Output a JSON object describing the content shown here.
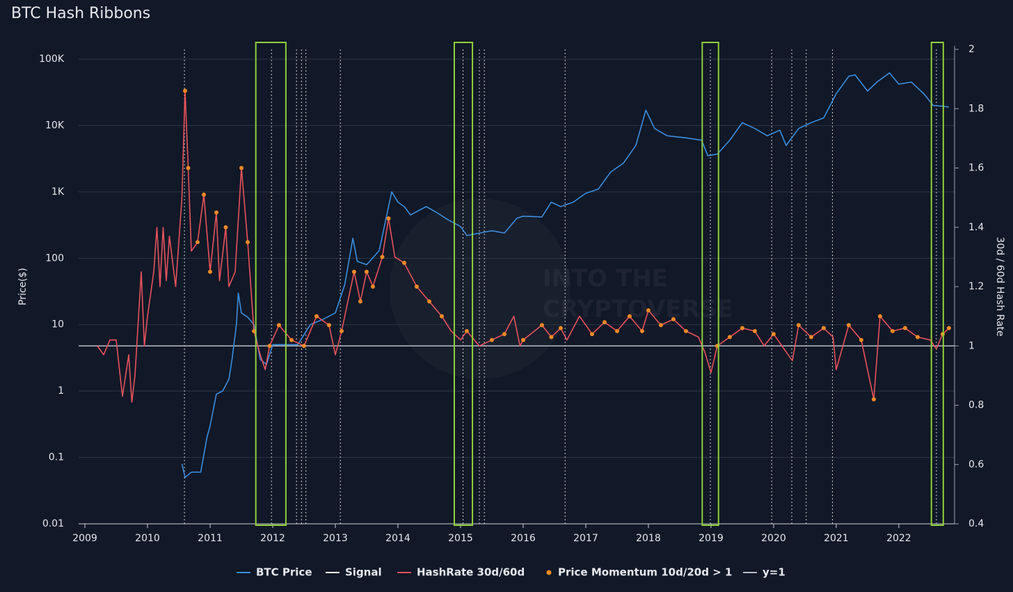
{
  "chart_data": {
    "type": "line",
    "title": "BTC Hash Ribbons",
    "ylabel": "Price($)",
    "y2label": "30d / 60d Hash Rate",
    "watermark": [
      "INTO THE",
      "CRYPTOVERSE"
    ],
    "xlim": [
      2008.9,
      2022.89
    ],
    "xticks": [
      2009,
      2010,
      2011,
      2012,
      2013,
      2014,
      2015,
      2016,
      2017,
      2018,
      2019,
      2020,
      2021,
      2022
    ],
    "ylim": [
      0.01,
      140000
    ],
    "log_y": true,
    "yticks": [
      0.01,
      0.1,
      1,
      10,
      100,
      {
        "value": 1000,
        "label": "1K"
      },
      {
        "value": 10000,
        "label": "10K"
      },
      {
        "value": 100000,
        "label": "100K"
      }
    ],
    "y2lim": [
      0.4,
      2
    ],
    "y2ticks": [
      0.4,
      0.6,
      0.8,
      1,
      1.2,
      1.4,
      1.6,
      1.8,
      2
    ],
    "grid": true,
    "legend": "bottom",
    "series": [
      {
        "name": "BTC Price",
        "color": "#3b8ee0",
        "x": [
          2010.55,
          2010.6,
          2010.7,
          2010.85,
          2010.95,
          2011.0,
          2011.1,
          2011.2,
          2011.3,
          2011.35,
          2011.42,
          2011.45,
          2011.5,
          2011.6,
          2011.7,
          2011.8,
          2011.9,
          2012.0,
          2012.2,
          2012.4,
          2012.6,
          2012.8,
          2013.0,
          2013.15,
          2013.28,
          2013.35,
          2013.5,
          2013.7,
          2013.9,
          2014.0,
          2014.1,
          2014.2,
          2014.45,
          2014.6,
          2014.8,
          2015.0,
          2015.1,
          2015.3,
          2015.5,
          2015.7,
          2015.9,
          2016.0,
          2016.3,
          2016.45,
          2016.6,
          2016.8,
          2017.0,
          2017.2,
          2017.4,
          2017.6,
          2017.8,
          2017.96,
          2018.1,
          2018.3,
          2018.6,
          2018.85,
          2018.95,
          2019.1,
          2019.3,
          2019.5,
          2019.7,
          2019.9,
          2020.1,
          2020.2,
          2020.4,
          2020.6,
          2020.8,
          2021.0,
          2021.2,
          2021.3,
          2021.5,
          2021.65,
          2021.85,
          2022.0,
          2022.2,
          2022.4,
          2022.55,
          2022.7,
          2022.8
        ],
        "values": [
          0.08,
          0.05,
          0.06,
          0.06,
          0.2,
          0.3,
          0.9,
          1,
          1.5,
          3,
          10,
          30,
          15,
          13,
          10,
          3,
          2.5,
          5,
          5,
          5,
          10,
          12,
          15,
          40,
          200,
          90,
          80,
          130,
          1000,
          700,
          600,
          450,
          600,
          500,
          380,
          300,
          220,
          240,
          260,
          240,
          400,
          430,
          420,
          700,
          600,
          700,
          950,
          1100,
          2000,
          2700,
          5000,
          17000,
          9000,
          7000,
          6500,
          6000,
          3500,
          3700,
          6000,
          11000,
          9000,
          7000,
          8500,
          5000,
          9000,
          11000,
          13000,
          30000,
          55000,
          58000,
          33000,
          45000,
          62000,
          42000,
          45000,
          30000,
          20000,
          19500,
          19000
        ]
      },
      {
        "name": "HashRate 30d/60d",
        "color": "#e8535b",
        "axis": "y2",
        "x": [
          2009.2,
          2009.3,
          2009.4,
          2009.5,
          2009.6,
          2009.7,
          2009.75,
          2009.8,
          2009.9,
          2009.95,
          2010.0,
          2010.1,
          2010.15,
          2010.2,
          2010.25,
          2010.3,
          2010.35,
          2010.45,
          2010.55,
          2010.6,
          2010.65,
          2010.7,
          2010.8,
          2010.9,
          2011.0,
          2011.1,
          2011.15,
          2011.25,
          2011.3,
          2011.4,
          2011.5,
          2011.6,
          2011.7,
          2011.8,
          2011.88,
          2011.95,
          2012.1,
          2012.3,
          2012.5,
          2012.7,
          2012.9,
          2013.0,
          2013.1,
          2013.3,
          2013.4,
          2013.5,
          2013.6,
          2013.75,
          2013.85,
          2013.95,
          2014.1,
          2014.3,
          2014.5,
          2014.7,
          2014.85,
          2015.0,
          2015.1,
          2015.3,
          2015.5,
          2015.7,
          2015.85,
          2015.95,
          2016.0,
          2016.3,
          2016.45,
          2016.6,
          2016.7,
          2016.9,
          2017.1,
          2017.3,
          2017.5,
          2017.7,
          2017.9,
          2018.0,
          2018.2,
          2018.4,
          2018.6,
          2018.8,
          2018.9,
          2019.0,
          2019.1,
          2019.3,
          2019.5,
          2019.7,
          2019.85,
          2020.0,
          2020.3,
          2020.4,
          2020.6,
          2020.8,
          2020.95,
          2021.0,
          2021.2,
          2021.4,
          2021.5,
          2021.6,
          2021.7,
          2021.9,
          2022.1,
          2022.3,
          2022.5,
          2022.6,
          2022.7,
          2022.8
        ],
        "values": [
          1.0,
          0.97,
          1.02,
          1.02,
          0.83,
          0.97,
          0.81,
          0.9,
          1.25,
          1.0,
          1.1,
          1.25,
          1.4,
          1.2,
          1.4,
          1.22,
          1.37,
          1.2,
          1.5,
          1.86,
          1.6,
          1.32,
          1.35,
          1.51,
          1.25,
          1.45,
          1.22,
          1.4,
          1.2,
          1.25,
          1.6,
          1.35,
          1.05,
          0.97,
          0.92,
          1.0,
          1.07,
          1.02,
          1.0,
          1.1,
          1.07,
          0.97,
          1.05,
          1.25,
          1.15,
          1.25,
          1.2,
          1.3,
          1.43,
          1.3,
          1.28,
          1.2,
          1.15,
          1.1,
          1.05,
          1.02,
          1.05,
          1.0,
          1.02,
          1.04,
          1.1,
          1.0,
          1.02,
          1.07,
          1.03,
          1.06,
          1.02,
          1.1,
          1.04,
          1.08,
          1.05,
          1.1,
          1.05,
          1.12,
          1.07,
          1.09,
          1.05,
          1.03,
          0.98,
          0.91,
          1.0,
          1.03,
          1.06,
          1.05,
          1.0,
          1.04,
          0.95,
          1.07,
          1.03,
          1.06,
          1.03,
          0.92,
          1.07,
          1.02,
          0.92,
          0.82,
          1.1,
          1.05,
          1.06,
          1.03,
          1.02,
          0.99,
          1.04,
          1.06
        ]
      },
      {
        "name": "Price Momentum 10d/20d > 1",
        "color": "#f08a24",
        "axis": "y2",
        "marker": "dot",
        "x": [
          2010.6,
          2010.65,
          2010.8,
          2010.9,
          2011.0,
          2011.1,
          2011.25,
          2011.5,
          2011.6,
          2011.7,
          2011.95,
          2012.1,
          2012.3,
          2012.5,
          2012.7,
          2012.9,
          2013.1,
          2013.3,
          2013.4,
          2013.5,
          2013.6,
          2013.75,
          2013.85,
          2014.1,
          2014.3,
          2014.5,
          2014.7,
          2015.1,
          2015.5,
          2015.7,
          2016.0,
          2016.3,
          2016.45,
          2016.6,
          2017.1,
          2017.3,
          2017.5,
          2017.7,
          2017.9,
          2018.0,
          2018.2,
          2018.4,
          2018.6,
          2019.1,
          2019.3,
          2019.5,
          2019.7,
          2020.0,
          2020.4,
          2020.6,
          2020.8,
          2021.2,
          2021.4,
          2021.6,
          2021.7,
          2021.9,
          2022.1,
          2022.3,
          2022.7,
          2022.8
        ],
        "values": [
          1.86,
          1.6,
          1.35,
          1.51,
          1.25,
          1.45,
          1.4,
          1.6,
          1.35,
          1.05,
          1.0,
          1.07,
          1.02,
          1.0,
          1.1,
          1.07,
          1.05,
          1.25,
          1.15,
          1.25,
          1.2,
          1.3,
          1.43,
          1.28,
          1.2,
          1.15,
          1.1,
          1.05,
          1.02,
          1.04,
          1.02,
          1.07,
          1.03,
          1.06,
          1.04,
          1.08,
          1.05,
          1.1,
          1.05,
          1.12,
          1.07,
          1.09,
          1.05,
          1.0,
          1.03,
          1.06,
          1.05,
          1.04,
          1.07,
          1.03,
          1.06,
          1.07,
          1.02,
          0.82,
          1.1,
          1.05,
          1.06,
          1.03,
          1.04,
          1.06
        ]
      }
    ],
    "signal": {
      "name": "Signal",
      "color": "#ffffff",
      "x": [
        2010.59,
        2011.98,
        2012.38,
        2012.46,
        2012.53,
        2013.08,
        2015.04,
        2015.3,
        2015.38,
        2016.67,
        2018.99,
        2019.97,
        2020.29,
        2020.52,
        2020.94,
        2022.6
      ]
    },
    "reference_line": {
      "name": "y=1",
      "value": 1,
      "axis": "y2",
      "color": "#b9bec8"
    },
    "highlight_ranges": {
      "color": "#8fd13a",
      "x": [
        [
          2011.73,
          2012.21
        ],
        [
          2014.9,
          2015.19
        ],
        [
          2018.86,
          2019.12
        ],
        [
          2022.52,
          2022.71
        ]
      ]
    }
  }
}
